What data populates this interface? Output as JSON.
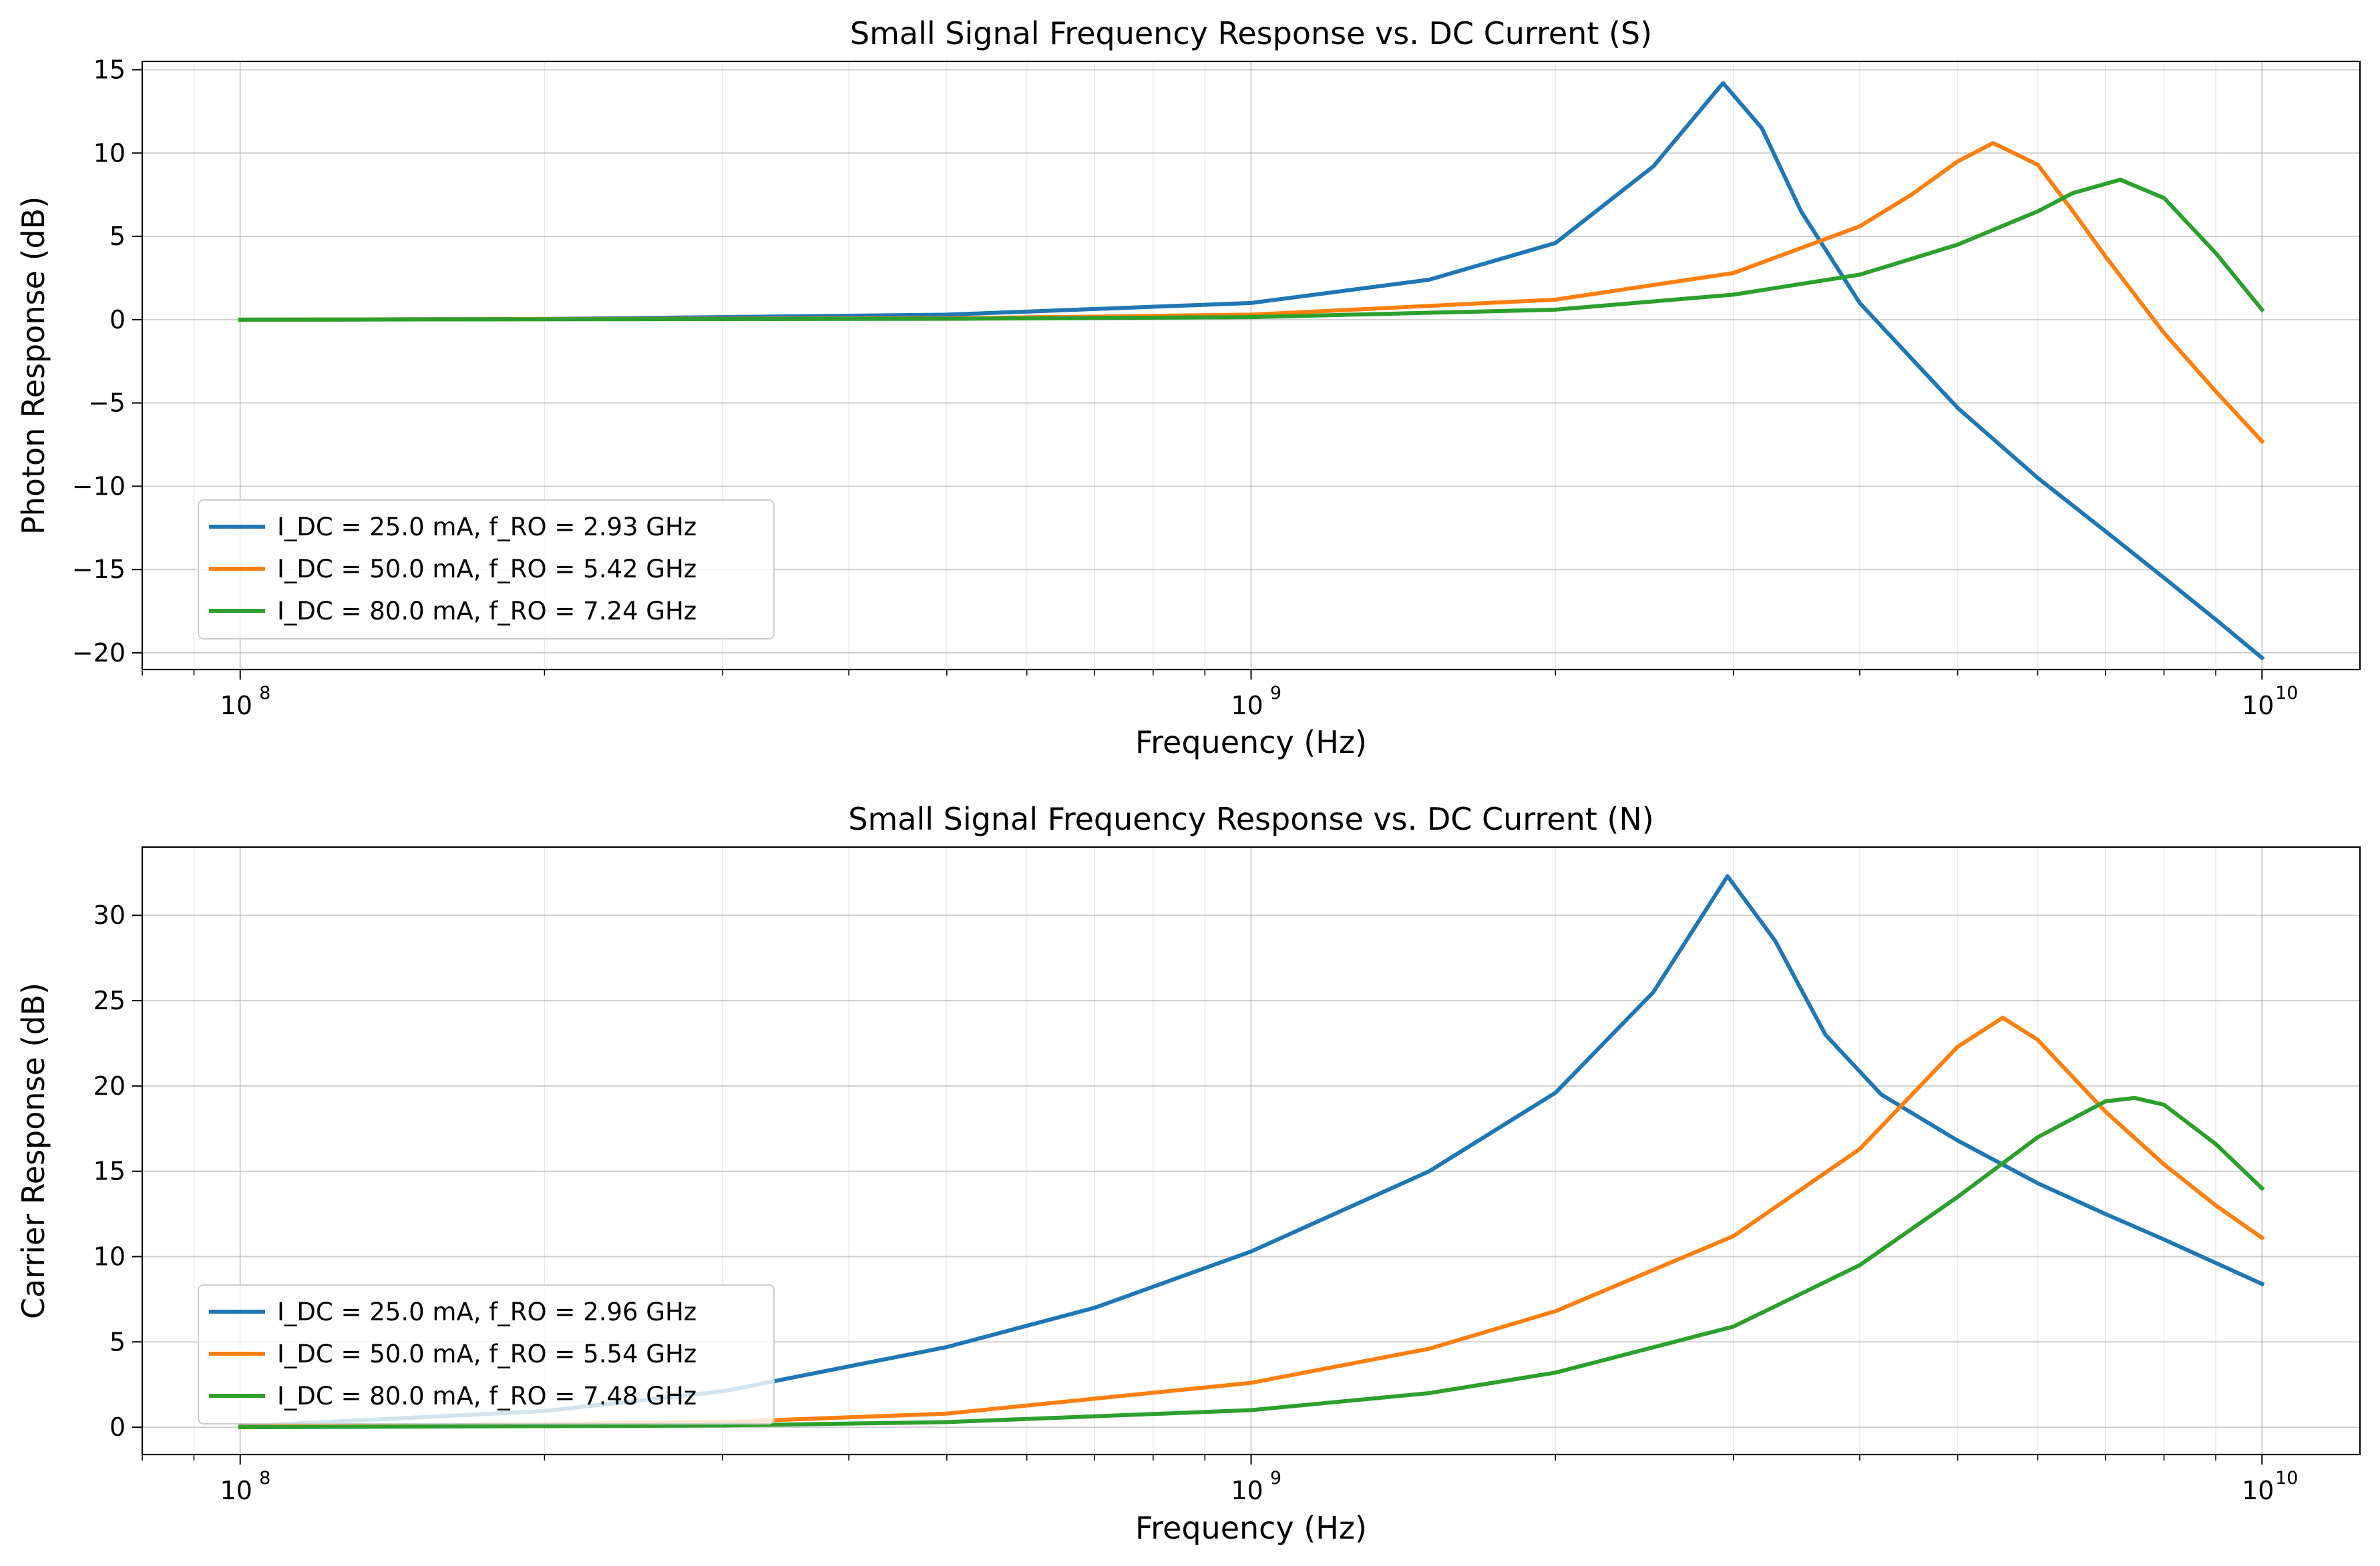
{
  "chart_data": [
    {
      "type": "line",
      "title": "Small Signal Frequency Response vs. DC Current (S)",
      "xlabel": "Frequency (Hz)",
      "ylabel": "Photon Response (dB)",
      "xscale": "log",
      "xlim": [
        80000000.0,
        12500000000.0
      ],
      "ylim": [
        -21,
        15.5
      ],
      "xticks": [
        {
          "base": "10",
          "exp": "8",
          "value": 100000000.0
        },
        {
          "base": "10",
          "exp": "9",
          "value": 1000000000.0
        },
        {
          "base": "10",
          "exp": "10",
          "value": 10000000000.0
        }
      ],
      "yticks": [
        15,
        10,
        5,
        0,
        -5,
        -10,
        -15,
        -20
      ],
      "ytick_labels": [
        "15",
        "10",
        "5",
        "0",
        "−5",
        "−10",
        "−15",
        "−20"
      ],
      "grid": true,
      "legend_position": "lower-left",
      "series": [
        {
          "name": "I_DC = 25.0 mA, f_RO = 2.93 GHz",
          "color": "#1f77b4",
          "f_ro": 2930000000.0,
          "points": [
            [
              100000000.0,
              0
            ],
            [
              200000000.0,
              0.04
            ],
            [
              500000000.0,
              0.3
            ],
            [
              1000000000.0,
              1.0
            ],
            [
              1500000000.0,
              2.4
            ],
            [
              2000000000.0,
              4.6
            ],
            [
              2500000000.0,
              9.2
            ],
            [
              2930000000.0,
              14.2
            ],
            [
              3200000000.0,
              11.5
            ],
            [
              3500000000.0,
              6.5
            ],
            [
              4000000000.0,
              1.0
            ],
            [
              5000000000.0,
              -5.3
            ],
            [
              6000000000.0,
              -9.5
            ],
            [
              7000000000.0,
              -12.7
            ],
            [
              8000000000.0,
              -15.5
            ],
            [
              9000000000.0,
              -18.0
            ],
            [
              10000000000.0,
              -20.3
            ]
          ]
        },
        {
          "name": "I_DC = 50.0 mA, f_RO = 5.42 GHz",
          "color": "#ff7f0e",
          "f_ro": 5420000000.0,
          "points": [
            [
              100000000.0,
              0
            ],
            [
              500000000.0,
              0.08
            ],
            [
              1000000000.0,
              0.3
            ],
            [
              2000000000.0,
              1.2
            ],
            [
              3000000000.0,
              2.8
            ],
            [
              4000000000.0,
              5.6
            ],
            [
              4500000000.0,
              7.5
            ],
            [
              5000000000.0,
              9.5
            ],
            [
              5420000000.0,
              10.6
            ],
            [
              6000000000.0,
              9.3
            ],
            [
              6500000000.0,
              6.5
            ],
            [
              7000000000.0,
              3.8
            ],
            [
              8000000000.0,
              -0.8
            ],
            [
              9000000000.0,
              -4.3
            ],
            [
              10000000000.0,
              -7.3
            ]
          ]
        },
        {
          "name": "I_DC = 80.0 mA, f_RO = 7.24 GHz",
          "color": "#2ca02c",
          "f_ro": 7240000000.0,
          "points": [
            [
              100000000.0,
              0
            ],
            [
              500000000.0,
              0.05
            ],
            [
              1000000000.0,
              0.15
            ],
            [
              2000000000.0,
              0.6
            ],
            [
              3000000000.0,
              1.5
            ],
            [
              4000000000.0,
              2.7
            ],
            [
              5000000000.0,
              4.5
            ],
            [
              6000000000.0,
              6.5
            ],
            [
              6500000000.0,
              7.6
            ],
            [
              7240000000.0,
              8.4
            ],
            [
              8000000000.0,
              7.3
            ],
            [
              9000000000.0,
              4.0
            ],
            [
              10000000000.0,
              0.6
            ]
          ]
        }
      ]
    },
    {
      "type": "line",
      "title": "Small Signal Frequency Response vs. DC Current (N)",
      "xlabel": "Frequency (Hz)",
      "ylabel": "Carrier Response (dB)",
      "xscale": "log",
      "xlim": [
        80000000.0,
        12500000000.0
      ],
      "ylim": [
        -1.6,
        34
      ],
      "xticks": [
        {
          "base": "10",
          "exp": "8",
          "value": 100000000.0
        },
        {
          "base": "10",
          "exp": "9",
          "value": 1000000000.0
        },
        {
          "base": "10",
          "exp": "10",
          "value": 10000000000.0
        }
      ],
      "yticks": [
        30,
        25,
        20,
        15,
        10,
        5,
        0
      ],
      "ytick_labels": [
        "30",
        "25",
        "20",
        "15",
        "10",
        "5",
        "0"
      ],
      "grid": true,
      "legend_position": "lower-left",
      "series": [
        {
          "name": "I_DC = 25.0 mA, f_RO = 2.96 GHz",
          "color": "#1f77b4",
          "f_ro": 2960000000.0,
          "points": [
            [
              100000000.0,
              0.05
            ],
            [
              200000000.0,
              0.95
            ],
            [
              300000000.0,
              2.1
            ],
            [
              500000000.0,
              4.7
            ],
            [
              700000000.0,
              7.0
            ],
            [
              1000000000.0,
              10.3
            ],
            [
              1500000000.0,
              15.0
            ],
            [
              2000000000.0,
              19.6
            ],
            [
              2500000000.0,
              25.5
            ],
            [
              2960000000.0,
              32.3
            ],
            [
              3300000000.0,
              28.5
            ],
            [
              3700000000.0,
              23.0
            ],
            [
              4200000000.0,
              19.5
            ],
            [
              5000000000.0,
              16.8
            ],
            [
              6000000000.0,
              14.3
            ],
            [
              7000000000.0,
              12.5
            ],
            [
              8000000000.0,
              11.0
            ],
            [
              10000000000.0,
              8.4
            ]
          ]
        },
        {
          "name": "I_DC = 50.0 mA, f_RO = 5.54 GHz",
          "color": "#ff7f0e",
          "f_ro": 5540000000.0,
          "points": [
            [
              100000000.0,
              0.02
            ],
            [
              300000000.0,
              0.3
            ],
            [
              500000000.0,
              0.8
            ],
            [
              1000000000.0,
              2.6
            ],
            [
              1500000000.0,
              4.6
            ],
            [
              2000000000.0,
              6.8
            ],
            [
              3000000000.0,
              11.2
            ],
            [
              4000000000.0,
              16.3
            ],
            [
              5000000000.0,
              22.3
            ],
            [
              5540000000.0,
              24.0
            ],
            [
              6000000000.0,
              22.7
            ],
            [
              7000000000.0,
              18.5
            ],
            [
              8000000000.0,
              15.4
            ],
            [
              9000000000.0,
              13.0
            ],
            [
              10000000000.0,
              11.1
            ]
          ]
        },
        {
          "name": "I_DC = 80.0 mA, f_RO = 7.48 GHz",
          "color": "#2ca02c",
          "f_ro": 7480000000.0,
          "points": [
            [
              100000000.0,
              0
            ],
            [
              300000000.0,
              0.1
            ],
            [
              500000000.0,
              0.3
            ],
            [
              1000000000.0,
              1.0
            ],
            [
              1500000000.0,
              2.0
            ],
            [
              2000000000.0,
              3.2
            ],
            [
              3000000000.0,
              5.9
            ],
            [
              4000000000.0,
              9.5
            ],
            [
              5000000000.0,
              13.5
            ],
            [
              6000000000.0,
              17.0
            ],
            [
              7000000000.0,
              19.1
            ],
            [
              7480000000.0,
              19.3
            ],
            [
              8000000000.0,
              18.9
            ],
            [
              9000000000.0,
              16.6
            ],
            [
              10000000000.0,
              14.0
            ]
          ]
        }
      ]
    }
  ]
}
